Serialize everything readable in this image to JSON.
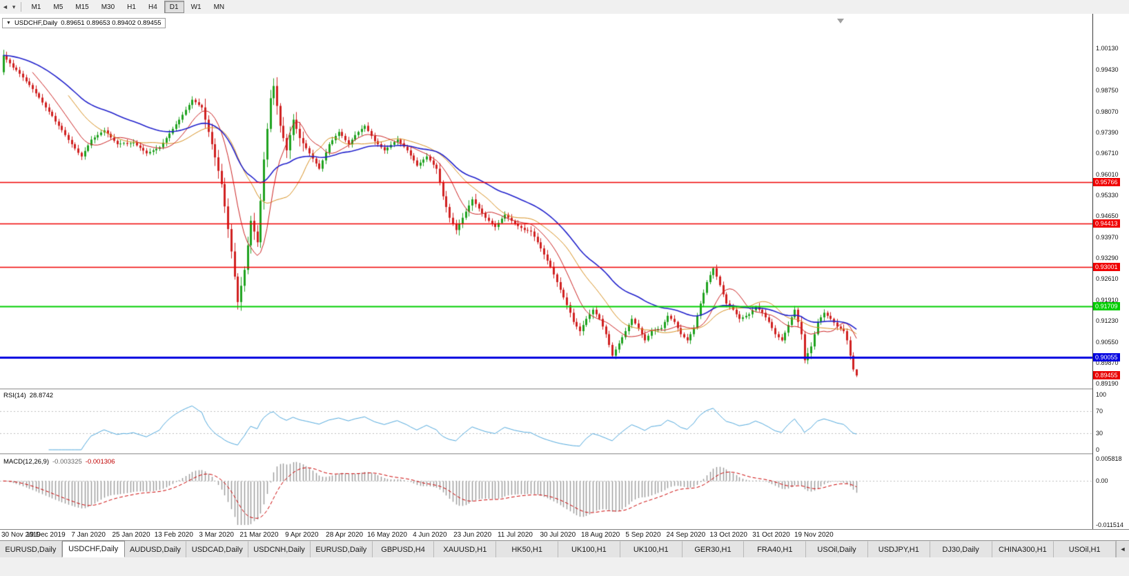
{
  "toolbar": {
    "left_icon": "◄",
    "caret_icon": "▾",
    "timeframes": [
      "M1",
      "M5",
      "M15",
      "M30",
      "H1",
      "H4",
      "D1",
      "W1",
      "MN"
    ],
    "active_timeframe": "D1"
  },
  "chart_title": {
    "collapse_icon": "▼",
    "symbol_period": "USDCHF,Daily",
    "ohlc": "0.89651 0.89653 0.89402 0.89455"
  },
  "rsi_panel": {
    "label": "RSI(14)",
    "value": "28.8742",
    "axis_labels": [
      "100",
      "70",
      "30",
      "0"
    ]
  },
  "macd_panel": {
    "label": "MACD(12,26,9)",
    "main_value": "-0.003325",
    "signal_value": "-0.001306",
    "axis_labels": [
      "0.005818",
      "0.00",
      "-0.011514"
    ]
  },
  "price_axis_ticks": [
    "1.00130",
    "0.99430",
    "0.98750",
    "0.98070",
    "0.97390",
    "0.96710",
    "0.96010",
    "0.95330",
    "0.94650",
    "0.93970",
    "0.93290",
    "0.92610",
    "0.91910",
    "0.91230",
    "0.90550",
    "0.89870",
    "0.89190"
  ],
  "date_axis": [
    "30 Nov 2019",
    "19 Dec 2019",
    "7 Jan 2020",
    "25 Jan 2020",
    "13 Feb 2020",
    "3 Mar 2020",
    "21 Mar 2020",
    "9 Apr 2020",
    "28 Apr 2020",
    "16 May 2020",
    "4 Jun 2020",
    "23 Jun 2020",
    "11 Jul 2020",
    "30 Jul 2020",
    "18 Aug 2020",
    "5 Sep 2020",
    "24 Sep 2020",
    "13 Oct 2020",
    "31 Oct 2020",
    "19 Nov 2020"
  ],
  "tabs": {
    "items": [
      "EURUSD,Daily",
      "USDCHF,Daily",
      "AUDUSD,Daily",
      "USDCAD,Daily",
      "USDCNH,Daily",
      "EURUSD,Daily",
      "GBPUSD,H4",
      "XAUUSD,H1",
      "HK50,H1",
      "UK100,H1",
      "UK100,H1",
      "GER30,H1",
      "FRA40,H1",
      "USOil,Daily",
      "USDJPY,H1",
      "DJ30,Daily",
      "CHINA300,H1",
      "USOil,H1"
    ],
    "active_index": 1,
    "scroll_icon": "◄"
  },
  "colors": {
    "up": "#1fa21f",
    "down": "#d02020",
    "ma_fast": "#cc2222",
    "ma_mid": "#d89020",
    "ma_slow": "#2020cc",
    "rsi_line": "#4fa8dd",
    "macd_histogram": "#999999",
    "macd_signal": "#cc0000"
  },
  "chart_data": {
    "type": "candlestick",
    "symbol": "USDCHF",
    "period": "Daily",
    "title": "USDCHF,Daily",
    "price_range": {
      "max": 1.0013,
      "min": 0.8919
    },
    "current_candle": {
      "open": 0.89651,
      "high": 0.89653,
      "low": 0.89402,
      "close": 0.89455
    },
    "current_price_tag": {
      "label": "0.89455",
      "color": "#e80000"
    },
    "hlines": [
      {
        "value": 0.95766,
        "label": "0.95766",
        "color": "#f00000",
        "width": 1.5
      },
      {
        "value": 0.94413,
        "label": "0.94413",
        "color": "#f00000",
        "width": 1.5
      },
      {
        "value": 0.93001,
        "label": "0.93001",
        "color": "#f00000",
        "width": 1.5
      },
      {
        "value": 0.91709,
        "label": "0.91709",
        "color": "#00ce00",
        "width": 2
      },
      {
        "value": 0.90055,
        "label": "0.90055",
        "color": "#0000e0",
        "width": 3
      }
    ],
    "indicators": {
      "ma_fast": {
        "type": "sma",
        "period": 10
      },
      "ma_mid": {
        "type": "sma",
        "period": 21
      },
      "ma_slow": {
        "type": "ema",
        "period": 40
      },
      "rsi": {
        "period": 14,
        "value": 28.8742,
        "levels": [
          70,
          30
        ],
        "axis_max": 100,
        "axis_min": 0
      },
      "macd": {
        "fast": 12,
        "slow": 26,
        "signal": 9,
        "main": -0.003325,
        "signal_value": -0.001306,
        "axis_max": 0.005818,
        "axis_min": -0.011514
      }
    },
    "closes": [
      0.999,
      0.9976,
      0.9964,
      0.995,
      0.9942,
      0.993,
      0.9918,
      0.9905,
      0.9893,
      0.988,
      0.9866,
      0.9852,
      0.9836,
      0.982,
      0.9806,
      0.9792,
      0.9774,
      0.976,
      0.9746,
      0.973,
      0.9714,
      0.97,
      0.9686,
      0.9672,
      0.966,
      0.9678,
      0.9696,
      0.9715,
      0.9722,
      0.973,
      0.9738,
      0.9745,
      0.9734,
      0.9722,
      0.9711,
      0.97,
      0.9702,
      0.9704,
      0.9701,
      0.9703,
      0.9705,
      0.9696,
      0.9688,
      0.9679,
      0.967,
      0.9675,
      0.968,
      0.9685,
      0.969,
      0.9705,
      0.972,
      0.9735,
      0.975,
      0.9765,
      0.978,
      0.9796,
      0.9812,
      0.9828,
      0.9845,
      0.9837,
      0.9828,
      0.982,
      0.978,
      0.974,
      0.97,
      0.9657,
      0.9613,
      0.957,
      0.9497,
      0.9423,
      0.935,
      0.9268,
      0.9185,
      0.9238,
      0.929,
      0.937,
      0.945,
      0.9415,
      0.938,
      0.9515,
      0.965,
      0.975,
      0.985,
      0.989,
      0.9825,
      0.976,
      0.972,
      0.968,
      0.973,
      0.978,
      0.975,
      0.972,
      0.9703,
      0.9687,
      0.967,
      0.9653,
      0.9637,
      0.962,
      0.9647,
      0.9673,
      0.97,
      0.9713,
      0.9727,
      0.974,
      0.9727,
      0.9713,
      0.97,
      0.9715,
      0.973,
      0.974,
      0.975,
      0.976,
      0.9743,
      0.9727,
      0.971,
      0.97,
      0.969,
      0.968,
      0.9689,
      0.9698,
      0.9707,
      0.9715,
      0.9703,
      0.9692,
      0.968,
      0.9663,
      0.9647,
      0.963,
      0.964,
      0.965,
      0.966,
      0.9647,
      0.9633,
      0.962,
      0.9575,
      0.953,
      0.9495,
      0.946,
      0.944,
      0.942,
      0.944,
      0.946,
      0.948,
      0.95,
      0.952,
      0.9505,
      0.949,
      0.9475,
      0.946,
      0.945,
      0.944,
      0.943,
      0.9443,
      0.9457,
      0.947,
      0.946,
      0.945,
      0.944,
      0.9433,
      0.9427,
      0.942,
      0.9418,
      0.9415,
      0.9398,
      0.938,
      0.936,
      0.934,
      0.932,
      0.93,
      0.9275,
      0.925,
      0.9225,
      0.92,
      0.9175,
      0.915,
      0.912,
      0.9105,
      0.909,
      0.911,
      0.913,
      0.9145,
      0.916,
      0.9145,
      0.913,
      0.9105,
      0.908,
      0.9045,
      0.901,
      0.903,
      0.905,
      0.907,
      0.909,
      0.911,
      0.913,
      0.9115,
      0.91,
      0.908,
      0.906,
      0.9075,
      0.909,
      0.9093,
      0.9097,
      0.91,
      0.912,
      0.914,
      0.913,
      0.912,
      0.91,
      0.908,
      0.907,
      0.906,
      0.908,
      0.91,
      0.914,
      0.918,
      0.9215,
      0.925,
      0.9273,
      0.9295,
      0.9268,
      0.924,
      0.921,
      0.918,
      0.917,
      0.916,
      0.9145,
      0.913,
      0.9135,
      0.914,
      0.9145,
      0.9158,
      0.917,
      0.916,
      0.915,
      0.9135,
      0.912,
      0.91,
      0.908,
      0.907,
      0.906,
      0.9085,
      0.911,
      0.9135,
      0.916,
      0.912,
      0.908,
      0.8995,
      0.9018,
      0.904,
      0.908,
      0.912,
      0.9135,
      0.915,
      0.914,
      0.913,
      0.9118,
      0.9105,
      0.9098,
      0.909,
      0.906,
      0.901,
      0.8965,
      0.8946
    ]
  }
}
